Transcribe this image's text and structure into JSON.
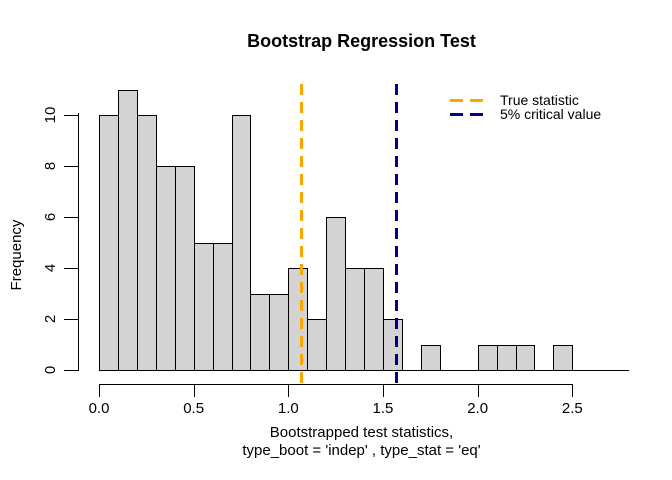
{
  "title": "Bootstrap Regression Test",
  "y_axis": {
    "label": "Frequency",
    "ticks": [
      "0",
      "2",
      "4",
      "6",
      "8",
      "10"
    ]
  },
  "x_axis": {
    "ticks": [
      "0.0",
      "0.5",
      "1.0",
      "1.5",
      "2.0",
      "2.5"
    ],
    "label_line1": "Bootstrapped test statistics,",
    "label_line2": "type_boot = 'indep' , type_stat = 'eq'"
  },
  "legend": {
    "items": [
      {
        "label": "True statistic",
        "color": "#FFA500"
      },
      {
        "label": "5% critical value",
        "color": "#000080"
      }
    ]
  },
  "chart_data": {
    "type": "bar",
    "subtype": "histogram",
    "title": "Bootstrap Regression Test",
    "xlabel": "Bootstrapped test statistics, type_boot = 'indep' , type_stat = 'eq'",
    "ylabel": "Frequency",
    "bin_start": 0.0,
    "bin_width": 0.1,
    "counts": [
      10,
      11,
      10,
      8,
      8,
      5,
      5,
      10,
      3,
      3,
      4,
      2,
      6,
      4,
      4,
      2,
      0,
      1,
      0,
      0,
      1,
      1,
      1,
      0,
      1,
      0,
      0,
      0
    ],
    "x_tick_values": [
      0.0,
      0.5,
      1.0,
      1.5,
      2.0,
      2.5
    ],
    "y_tick_values": [
      0,
      2,
      4,
      6,
      8,
      10
    ],
    "xlim": [
      0.0,
      2.8
    ],
    "ylim": [
      0,
      11
    ],
    "grid": false,
    "legend_position": "top-right",
    "bar_fill": "#d3d3d3",
    "bar_border": "#000000",
    "vlines": [
      {
        "name": "True statistic",
        "x": 1.07,
        "color": "#FFA500",
        "style": "dashed"
      },
      {
        "name": "5% critical value",
        "x": 1.57,
        "color": "#000080",
        "style": "dashed"
      }
    ]
  }
}
